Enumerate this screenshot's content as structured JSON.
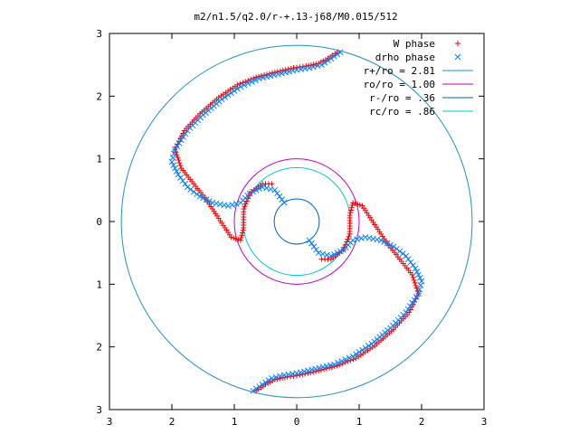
{
  "chart_data": {
    "type": "scatter",
    "title": "m2/n1.5/q2.0/r-+.13-j68/M0.015/512",
    "xlim": [
      -3,
      3
    ],
    "ylim": [
      -3,
      3
    ],
    "grid": false,
    "legend_position": "top-right",
    "x_ticks": [
      -3,
      -2,
      -1,
      0,
      1,
      2,
      3
    ],
    "x_tick_labels": [
      "3",
      "2",
      "1",
      "0",
      "1",
      "2",
      "3"
    ],
    "y_ticks": [
      3,
      2,
      1,
      0,
      -1,
      -2,
      -3
    ],
    "y_tick_labels": [
      "3",
      "2",
      "1",
      "0",
      "1",
      "2",
      "3"
    ],
    "series": [
      {
        "name": "W phase",
        "marker": "plus",
        "color": "#ff0000"
      },
      {
        "name": "drho phase",
        "marker": "cross",
        "color": "#0080ff"
      }
    ],
    "circles": [
      {
        "name": "r+/ro = 2.81",
        "radius": 2.81,
        "color": "#1e90c8"
      },
      {
        "name": "ro/ro = 1.00",
        "radius": 1.0,
        "color": "#c000c0"
      },
      {
        "name": "r-/ro = .36",
        "radius": 0.36,
        "color": "#0060c0"
      },
      {
        "name": "rc/ro = .86",
        "radius": 0.86,
        "color": "#00c8d0"
      }
    ],
    "arm_upper_drho": [
      [
        0.7,
        2.7
      ],
      [
        0.55,
        2.6
      ],
      [
        0.4,
        2.5
      ],
      [
        0.2,
        2.45
      ],
      [
        0.0,
        2.42
      ],
      [
        -0.3,
        2.35
      ],
      [
        -0.6,
        2.28
      ],
      [
        -0.9,
        2.15
      ],
      [
        -1.2,
        1.95
      ],
      [
        -1.5,
        1.7
      ],
      [
        -1.75,
        1.45
      ],
      [
        -1.95,
        1.15
      ],
      [
        -2.0,
        0.95
      ],
      [
        -1.9,
        0.75
      ],
      [
        -1.75,
        0.55
      ],
      [
        -1.55,
        0.4
      ],
      [
        -1.35,
        0.3
      ],
      [
        -1.1,
        0.25
      ],
      [
        -0.9,
        0.3
      ],
      [
        -0.75,
        0.45
      ],
      [
        -0.55,
        0.55
      ],
      [
        -0.35,
        0.5
      ],
      [
        -0.2,
        0.3
      ]
    ],
    "arm_upper_w": [
      [
        0.65,
        2.7
      ],
      [
        0.5,
        2.6
      ],
      [
        0.35,
        2.52
      ],
      [
        0.15,
        2.48
      ],
      [
        -0.05,
        2.45
      ],
      [
        -0.35,
        2.38
      ],
      [
        -0.65,
        2.3
      ],
      [
        -0.95,
        2.18
      ],
      [
        -1.25,
        1.98
      ],
      [
        -1.55,
        1.72
      ],
      [
        -1.8,
        1.45
      ],
      [
        -1.95,
        1.15
      ],
      [
        -1.85,
        0.85
      ],
      [
        -1.65,
        0.6
      ],
      [
        -1.45,
        0.35
      ],
      [
        -1.25,
        0.05
      ],
      [
        -1.05,
        -0.25
      ],
      [
        -0.9,
        -0.3
      ],
      [
        -0.85,
        -0.1
      ],
      [
        -0.85,
        0.2
      ],
      [
        -0.75,
        0.45
      ],
      [
        -0.55,
        0.6
      ],
      [
        -0.4,
        0.6
      ]
    ],
    "arm_lower_drho": [
      [
        -0.7,
        -2.7
      ],
      [
        -0.55,
        -2.6
      ],
      [
        -0.4,
        -2.5
      ],
      [
        -0.2,
        -2.45
      ],
      [
        0.0,
        -2.42
      ],
      [
        0.3,
        -2.35
      ],
      [
        0.6,
        -2.28
      ],
      [
        0.9,
        -2.15
      ],
      [
        1.2,
        -1.95
      ],
      [
        1.5,
        -1.7
      ],
      [
        1.75,
        -1.45
      ],
      [
        1.95,
        -1.15
      ],
      [
        2.0,
        -0.95
      ],
      [
        1.9,
        -0.75
      ],
      [
        1.75,
        -0.55
      ],
      [
        1.55,
        -0.4
      ],
      [
        1.35,
        -0.3
      ],
      [
        1.1,
        -0.25
      ],
      [
        0.9,
        -0.3
      ],
      [
        0.75,
        -0.45
      ],
      [
        0.55,
        -0.55
      ],
      [
        0.35,
        -0.5
      ],
      [
        0.2,
        -0.3
      ]
    ],
    "arm_lower_w": [
      [
        -0.65,
        -2.7
      ],
      [
        -0.5,
        -2.6
      ],
      [
        -0.35,
        -2.52
      ],
      [
        -0.15,
        -2.48
      ],
      [
        0.05,
        -2.45
      ],
      [
        0.35,
        -2.38
      ],
      [
        0.65,
        -2.3
      ],
      [
        0.95,
        -2.18
      ],
      [
        1.25,
        -1.98
      ],
      [
        1.55,
        -1.72
      ],
      [
        1.8,
        -1.45
      ],
      [
        1.95,
        -1.15
      ],
      [
        1.85,
        -0.85
      ],
      [
        1.65,
        -0.6
      ],
      [
        1.45,
        -0.35
      ],
      [
        1.25,
        -0.05
      ],
      [
        1.05,
        0.25
      ],
      [
        0.9,
        0.3
      ],
      [
        0.85,
        0.1
      ],
      [
        0.85,
        -0.2
      ],
      [
        0.75,
        -0.45
      ],
      [
        0.55,
        -0.6
      ],
      [
        0.4,
        -0.6
      ]
    ]
  }
}
